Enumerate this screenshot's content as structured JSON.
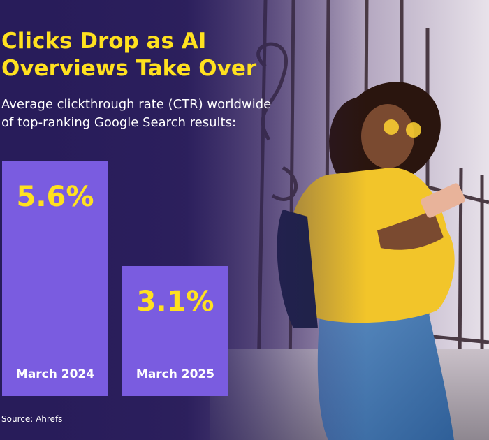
{
  "headline": [
    "Clicks Drop as AI",
    "Overviews Take Over"
  ],
  "subtitle": [
    "Average clickthrough rate (CTR) worldwide",
    "of top-ranking Google Search results:"
  ],
  "source": "Source: Ahrefs",
  "colors": {
    "background": "#2a1d5c",
    "bar": "#7a5ce0",
    "value": "#ffe11f",
    "label": "#ffffff",
    "title": "#ffe11f"
  },
  "photo_subject": "woman-in-yellow-sweater-using-phone",
  "chart_data": {
    "type": "bar",
    "categories": [
      "March 2024",
      "March 2025"
    ],
    "values": [
      5.6,
      3.1
    ],
    "value_labels": [
      "5.6%",
      "3.1%"
    ],
    "title": "",
    "xlabel": "",
    "ylabel": "",
    "ylim": [
      0,
      5.6
    ],
    "grid": false,
    "legend": "none"
  }
}
